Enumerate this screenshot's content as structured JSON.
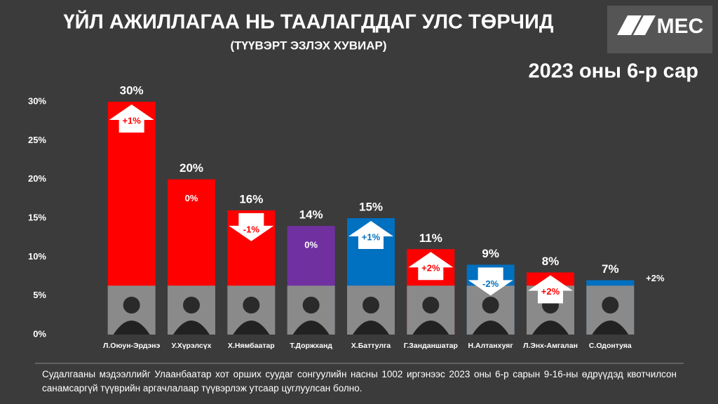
{
  "title": "ҮЙЛ АЖИЛЛАГАА НЬ ТААЛАГДДАГ УЛС ТӨРЧИД",
  "subtitle": "(ТҮҮВЭРТ ЭЗЛЭХ ХУВИАР)",
  "period": "2023 оны 6-р сар",
  "logo": "MEC",
  "footnote": "Судалгааны мэдээллийг Улаанбаатар хот орших суудаг сонгуулийн насны 1002 иргэнээс 2023 оны 6-р сарын 9-16-ны өдрүүдэд квотчилсон санамсаргүй түүврийн аргачлалаар түүвэрлэж утсаар цуглуулсан болно.",
  "chart_data": {
    "type": "bar",
    "categories": [
      "Л.Оюун-Эрдэнэ",
      "У.Хүрэлсүх",
      "Х.Нямбаатар",
      "Т.Доржханд",
      "Х.Баттулга",
      "Г.Занданшатар",
      "Н.Алтанхуяг",
      "Л.Энх-Амгалан",
      "С.Одонтуяа"
    ],
    "values": [
      30,
      20,
      16,
      14,
      15,
      11,
      9,
      8,
      7
    ],
    "value_labels": [
      "30%",
      "20%",
      "16%",
      "14%",
      "15%",
      "11%",
      "9%",
      "8%",
      "7%"
    ],
    "colors": [
      "#ff0000",
      "#ff0000",
      "#ff0000",
      "#7030a0",
      "#0070c0",
      "#ff0000",
      "#0070c0",
      "#ff0000",
      "#0070c0"
    ],
    "changes": [
      "+1%",
      "0%",
      "-1%",
      "0%",
      "+1%",
      "+2%",
      "-2%",
      "+2%",
      "+2%"
    ],
    "ylim": [
      0,
      30
    ],
    "yticks": [
      {
        "value": 0,
        "label": "0%"
      },
      {
        "value": 5,
        "label": "5%"
      },
      {
        "value": 10,
        "label": "10%"
      },
      {
        "value": 15,
        "label": "15%"
      },
      {
        "value": 20,
        "label": "20%"
      },
      {
        "value": 25,
        "label": "25%"
      },
      {
        "value": 30,
        "label": "30%"
      }
    ],
    "grid": false
  }
}
